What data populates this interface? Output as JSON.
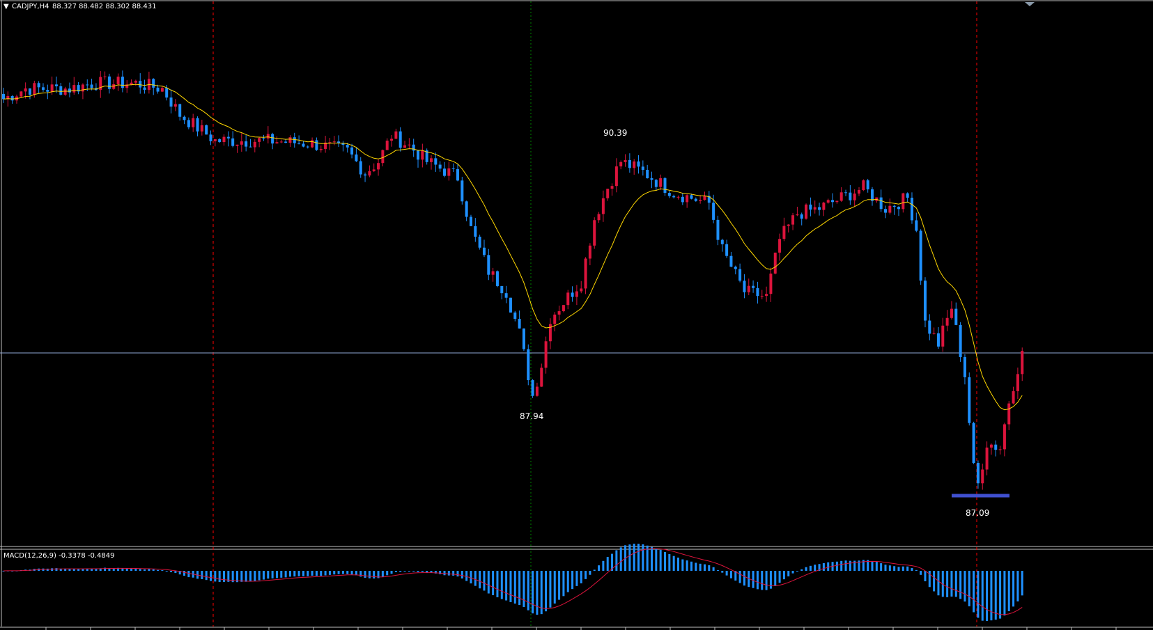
{
  "header": {
    "symbol": "CADJPY,H4",
    "ohlc": "88.327 88.482 88.302 88.431"
  },
  "indicator": {
    "label": "MACD(12,26,9) -0.3378 -0.4849"
  },
  "annotations": {
    "high_label": "90.39",
    "low1_label": "87.94",
    "low2_label": "87.09"
  },
  "colors": {
    "background": "#000000",
    "bull": "#dc143c",
    "bear": "#1e90ff",
    "ma": "#ffd700",
    "signal": "#dc143c",
    "support": "#4050d0",
    "vline": "#ff0000",
    "cursor": "#008000",
    "hline": "#8fa8d8"
  },
  "chart_data": {
    "type": "candlestick",
    "symbol": "CADJPY",
    "timeframe": "H4",
    "bars": 232,
    "price_path": [
      [
        0,
        90.85
      ],
      [
        5,
        90.95
      ],
      [
        15,
        90.95
      ],
      [
        20,
        91.0
      ],
      [
        30,
        91.0
      ],
      [
        36,
        90.95
      ],
      [
        40,
        90.7
      ],
      [
        48,
        90.45
      ],
      [
        60,
        90.45
      ],
      [
        70,
        90.42
      ],
      [
        78,
        90.35
      ],
      [
        82,
        90.14
      ],
      [
        85,
        90.25
      ],
      [
        88,
        90.5
      ],
      [
        92,
        90.4
      ],
      [
        96,
        90.25
      ],
      [
        103,
        90.1
      ],
      [
        106,
        89.6
      ],
      [
        110,
        89.2
      ],
      [
        114,
        89.0
      ],
      [
        117,
        88.6
      ],
      [
        120,
        88.0
      ],
      [
        122,
        88.3
      ],
      [
        124,
        88.75
      ],
      [
        127,
        88.9
      ],
      [
        131,
        89.1
      ],
      [
        134,
        89.7
      ],
      [
        137,
        90.0
      ],
      [
        140,
        90.25
      ],
      [
        145,
        90.15
      ],
      [
        152,
        89.95
      ],
      [
        160,
        89.85
      ],
      [
        163,
        89.4
      ],
      [
        168,
        89.0
      ],
      [
        173,
        88.95
      ],
      [
        176,
        89.5
      ],
      [
        180,
        89.75
      ],
      [
        185,
        89.8
      ],
      [
        190,
        89.9
      ],
      [
        195,
        90.0
      ],
      [
        200,
        89.8
      ],
      [
        205,
        89.9
      ],
      [
        207,
        89.6
      ],
      [
        209,
        88.7
      ],
      [
        212,
        88.5
      ],
      [
        215,
        88.85
      ],
      [
        218,
        88.2
      ],
      [
        220,
        87.3
      ],
      [
        221,
        87.15
      ],
      [
        223,
        87.55
      ],
      [
        226,
        87.5
      ],
      [
        228,
        87.95
      ],
      [
        231,
        88.43
      ]
    ],
    "last_price": 88.431,
    "marked_levels": [
      90.39,
      87.94,
      87.09
    ],
    "macd": {
      "fast": 12,
      "slow": 26,
      "signal": 9,
      "main": -0.3378,
      "signal_value": -0.4849
    }
  }
}
